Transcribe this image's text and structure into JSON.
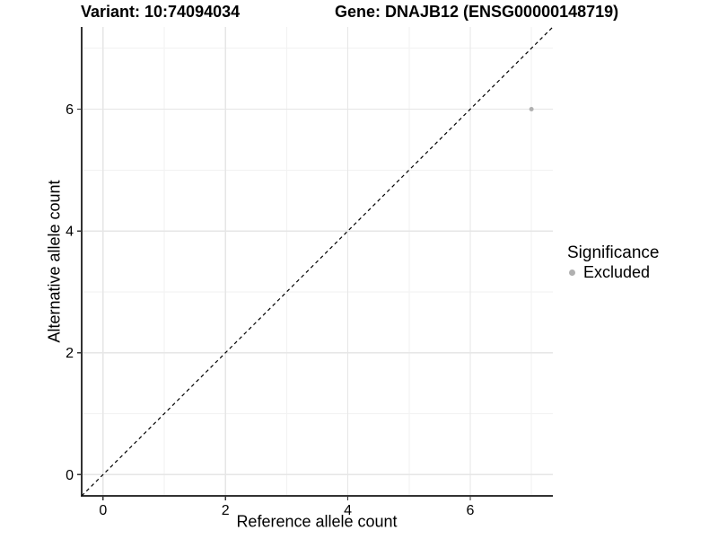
{
  "title": {
    "left": "Variant: 10:74094034",
    "right": "Gene: DNAJB12 (ENSG00000148719)"
  },
  "legend": {
    "title": "Significance",
    "items": [
      {
        "label": "Excluded",
        "color": "#b0b0b0"
      }
    ]
  },
  "chart_data": {
    "type": "scatter",
    "title_left": "Variant: 10:74094034",
    "title_right": "Gene: DNAJB12 (ENSG00000148719)",
    "xlabel": "Reference allele count",
    "ylabel": "Alternative allele count",
    "xlim": [
      -0.35,
      7.35
    ],
    "ylim": [
      -0.35,
      7.35
    ],
    "x_major_ticks": [
      0,
      2,
      4,
      6
    ],
    "x_minor_gridlines": [
      1,
      3,
      5,
      7
    ],
    "y_major_ticks": [
      0,
      2,
      4,
      6
    ],
    "y_minor_gridlines": [
      1,
      3,
      5,
      7
    ],
    "grid": "on",
    "legend_position": "right",
    "series": [
      {
        "name": "Excluded",
        "color": "#b0b0b0",
        "point_radius": 2.5,
        "points": [
          {
            "x": 7,
            "y": 6
          }
        ]
      }
    ],
    "reference_line": {
      "type": "identity",
      "slope": 1,
      "intercept": 0,
      "style": "dashed",
      "color": "#000000"
    }
  },
  "colors": {
    "background": "#ffffff",
    "grid_major": "#e6e6e6",
    "grid_minor": "#f2f2f2",
    "axis_line": "#333333",
    "tick_mark": "#333333",
    "tick_label": "#000000",
    "point": "#b0b0b0"
  }
}
